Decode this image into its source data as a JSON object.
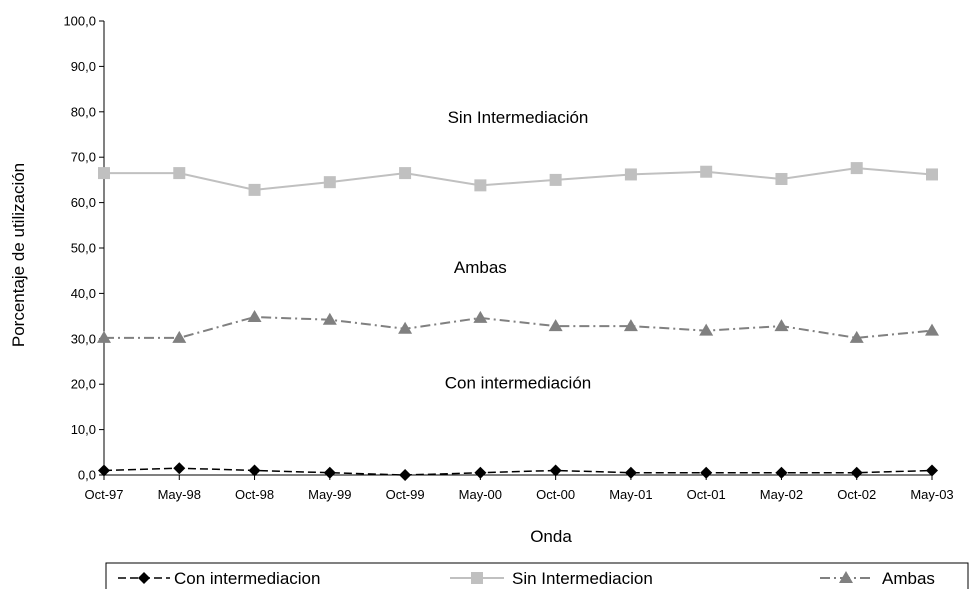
{
  "chart_data": {
    "type": "line",
    "title": "",
    "xlabel": "Onda",
    "ylabel": "Porcentaje de utilización",
    "ylim": [
      0,
      100
    ],
    "yticks": [
      "0,0",
      "10,0",
      "20,0",
      "30,0",
      "40,0",
      "50,0",
      "60,0",
      "70,0",
      "80,0",
      "90,0",
      "100,0"
    ],
    "grid": false,
    "legend_position": "bottom",
    "categories": [
      "Oct-97",
      "May-98",
      "Oct-98",
      "May-99",
      "Oct-99",
      "May-00",
      "Oct-00",
      "May-01",
      "Oct-01",
      "May-02",
      "Oct-02",
      "May-03"
    ],
    "series": [
      {
        "name": "Con intermediacion",
        "values": [
          1.0,
          1.5,
          1.0,
          0.5,
          0.0,
          0.5,
          1.0,
          0.5,
          0.5,
          0.5,
          0.5,
          1.0
        ],
        "color": "#000000",
        "marker": "diamond",
        "dash": "8,4"
      },
      {
        "name": "Sin Intermediacion",
        "values": [
          66.5,
          66.5,
          62.8,
          64.5,
          66.5,
          63.8,
          65.0,
          66.2,
          66.8,
          65.2,
          67.6,
          66.2
        ],
        "color": "#c0c0c0",
        "marker": "square",
        "dash": ""
      },
      {
        "name": "Ambas",
        "values": [
          30.2,
          30.2,
          34.8,
          34.2,
          32.2,
          34.6,
          32.8,
          32.8,
          31.8,
          32.8,
          30.2,
          31.8
        ],
        "color": "#808080",
        "marker": "triangle",
        "dash": "10,4,2,4"
      }
    ],
    "annotations": [
      {
        "text": "Sin Intermediación",
        "x": 5.5,
        "y": 77.5
      },
      {
        "text": "Ambas",
        "x": 5.0,
        "y": 44.5
      },
      {
        "text": "Con intermediación",
        "x": 5.5,
        "y": 19.0
      }
    ]
  }
}
